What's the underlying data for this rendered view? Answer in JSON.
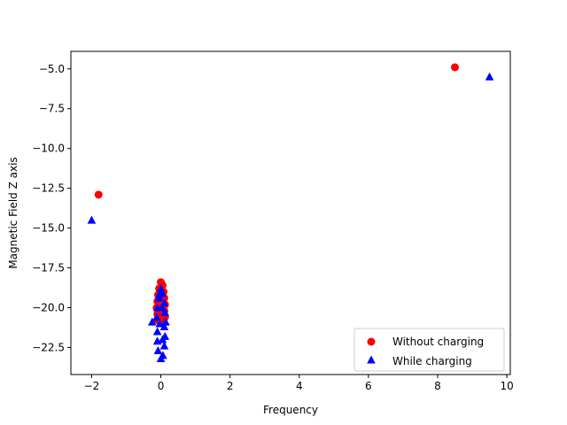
{
  "chart_data": {
    "type": "scatter",
    "title": "",
    "xlabel": "Frequency",
    "ylabel": "Magnetic Field Z axis",
    "xlim": [
      -2.6,
      10.1
    ],
    "ylim": [
      -24.2,
      -3.9
    ],
    "xticks": [
      -2,
      0,
      2,
      4,
      6,
      8,
      10
    ],
    "xtick_labels": [
      "−2",
      "0",
      "2",
      "4",
      "6",
      "8",
      "10"
    ],
    "yticks": [
      -22.5,
      -20.0,
      -17.5,
      -15.0,
      -12.5,
      -10.0,
      -7.5,
      -5.0
    ],
    "ytick_labels": [
      "−22.5",
      "−20.0",
      "−17.5",
      "−15.0",
      "−12.5",
      "−10.0",
      "−7.5",
      "−5.0"
    ],
    "grid": false,
    "legend_position": "bottom-right",
    "series": [
      {
        "name": "Without charging",
        "marker": "circle",
        "color": "#ff0000",
        "points": [
          [
            -1.8,
            -12.9
          ],
          [
            8.5,
            -4.9
          ],
          [
            0.0,
            -18.4
          ],
          [
            0.05,
            -18.6
          ],
          [
            -0.05,
            -18.8
          ],
          [
            0.08,
            -19.0
          ],
          [
            -0.08,
            -19.2
          ],
          [
            0.1,
            -19.4
          ],
          [
            -0.1,
            -19.6
          ],
          [
            0.12,
            -19.8
          ],
          [
            -0.12,
            -20.0
          ],
          [
            0.1,
            -20.2
          ],
          [
            -0.1,
            -20.4
          ],
          [
            0.12,
            -20.6
          ],
          [
            -0.08,
            -20.8
          ],
          [
            0.06,
            -21.0
          ],
          [
            0.0,
            -19.1
          ],
          [
            0.03,
            -19.9
          ],
          [
            -0.03,
            -20.5
          ]
        ]
      },
      {
        "name": "While charging",
        "marker": "triangle",
        "color": "#0000ff",
        "points": [
          [
            -2.0,
            -14.5
          ],
          [
            9.5,
            -5.5
          ],
          [
            0.0,
            -18.8
          ],
          [
            0.05,
            -19.1
          ],
          [
            -0.05,
            -19.4
          ],
          [
            0.1,
            -19.7
          ],
          [
            -0.1,
            -20.0
          ],
          [
            0.12,
            -20.3
          ],
          [
            -0.12,
            -20.6
          ],
          [
            0.14,
            -20.9
          ],
          [
            -0.25,
            -20.9
          ],
          [
            0.1,
            -21.2
          ],
          [
            -0.1,
            -21.5
          ],
          [
            0.12,
            -21.8
          ],
          [
            -0.1,
            -22.1
          ],
          [
            0.1,
            -22.4
          ],
          [
            -0.08,
            -22.7
          ],
          [
            0.06,
            -23.0
          ],
          [
            0.0,
            -23.2
          ],
          [
            0.03,
            -20.0
          ],
          [
            -0.03,
            -21.0
          ],
          [
            0.05,
            -22.0
          ],
          [
            -0.05,
            -19.2
          ]
        ]
      }
    ]
  }
}
